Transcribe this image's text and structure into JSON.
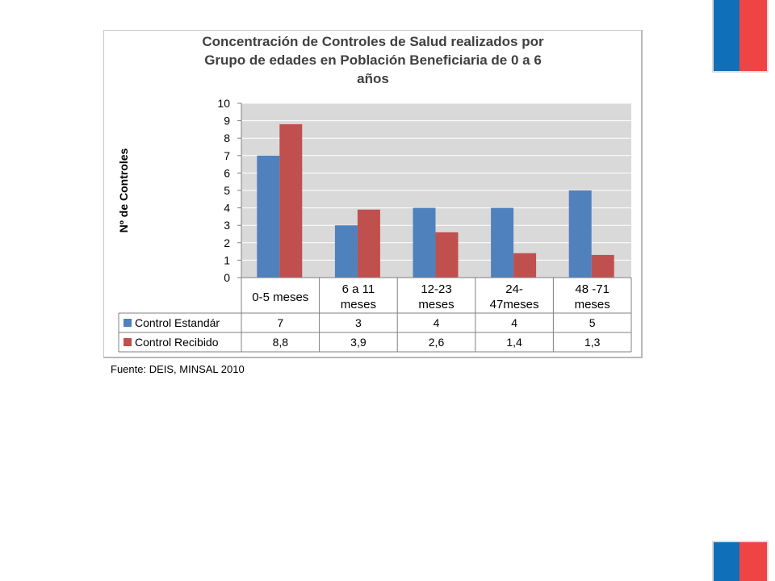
{
  "colors": {
    "flag_blue": "#0f6fb8",
    "flag_red": "#ee4444",
    "series1": "#4f81bd",
    "series2": "#c0504d",
    "plot_bg": "#d9d9d9"
  },
  "chart_data": {
    "type": "bar",
    "title_lines": [
      "Concentración de Controles de Salud realizados por",
      "Grupo de edades en Población Beneficiaria  de 0 a 6",
      "años"
    ],
    "ylabel": "Nº de Controles",
    "ylim": [
      0,
      10
    ],
    "yticks": [
      "0",
      "1",
      "2",
      "3",
      "4",
      "5",
      "6",
      "7",
      "8",
      "9",
      "10"
    ],
    "categories": [
      [
        "0-5 meses"
      ],
      [
        "6 a 11",
        "meses"
      ],
      [
        "12-23",
        "meses"
      ],
      [
        "24-",
        "47meses"
      ],
      [
        "48 -71",
        "meses"
      ]
    ],
    "series": [
      {
        "name": "Control Estandár",
        "values": [
          7,
          3,
          4,
          4,
          5
        ],
        "labels": [
          "7",
          "3",
          "4",
          "4",
          "5"
        ],
        "color": "#4f81bd"
      },
      {
        "name": "Control Recibido",
        "values": [
          8.8,
          3.9,
          2.6,
          1.4,
          1.3
        ],
        "labels": [
          "8,8",
          "3,9",
          "2,6",
          "1,4",
          "1,3"
        ],
        "color": "#c0504d"
      }
    ],
    "grid": true,
    "legend": "data-table"
  },
  "source": "Fuente: DEIS, MINSAL 2010"
}
